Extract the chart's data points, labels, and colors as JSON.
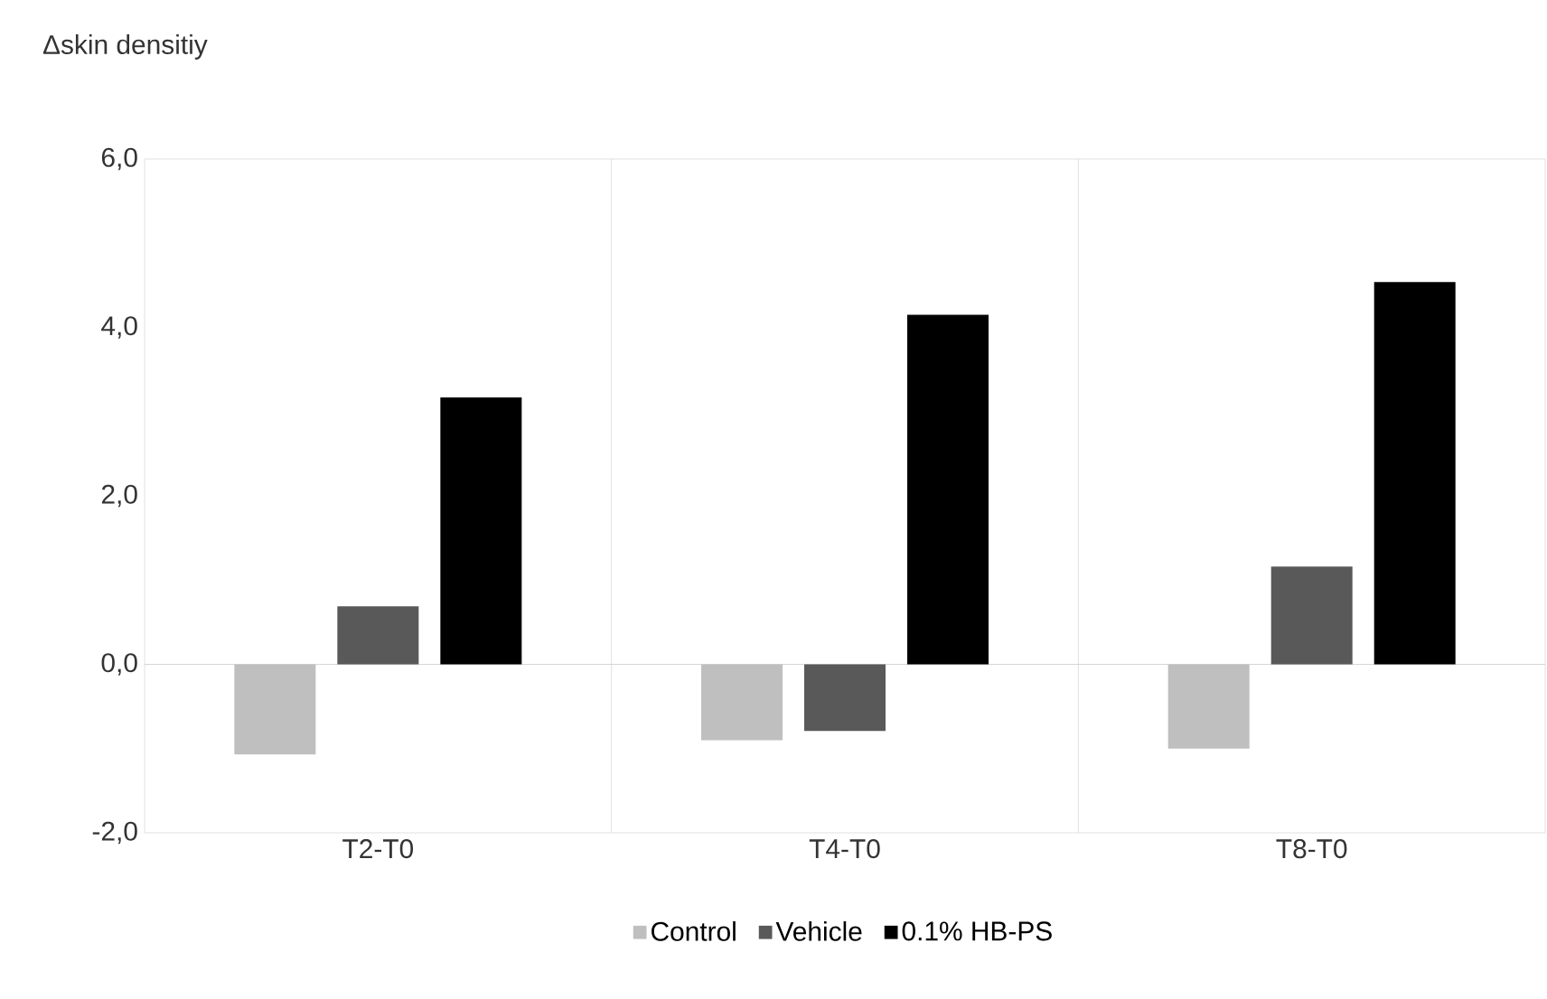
{
  "chart_data": {
    "type": "bar",
    "ylabel": "Δskin densitiy",
    "categories": [
      "T2-T0",
      "T4-T0",
      "T8-T0"
    ],
    "series": [
      {
        "name": "Control",
        "color": "#bfbfbf",
        "values": [
          -1.07,
          -0.9,
          -1.0
        ]
      },
      {
        "name": "Vehicle",
        "color": "#595959",
        "values": [
          0.69,
          -0.79,
          1.16
        ]
      },
      {
        "name": "0.1% HB-PS",
        "color": "#000000",
        "values": [
          3.17,
          4.15,
          4.54
        ]
      }
    ],
    "ylim": [
      -2,
      6
    ],
    "yticks": [
      {
        "value": -2,
        "label": "-2,0"
      },
      {
        "value": 0,
        "label": "0,0"
      },
      {
        "value": 2,
        "label": "2,0"
      },
      {
        "value": 4,
        "label": "4,0"
      },
      {
        "value": 6,
        "label": "6,0"
      }
    ],
    "grid": "x",
    "legend": "bottom"
  }
}
